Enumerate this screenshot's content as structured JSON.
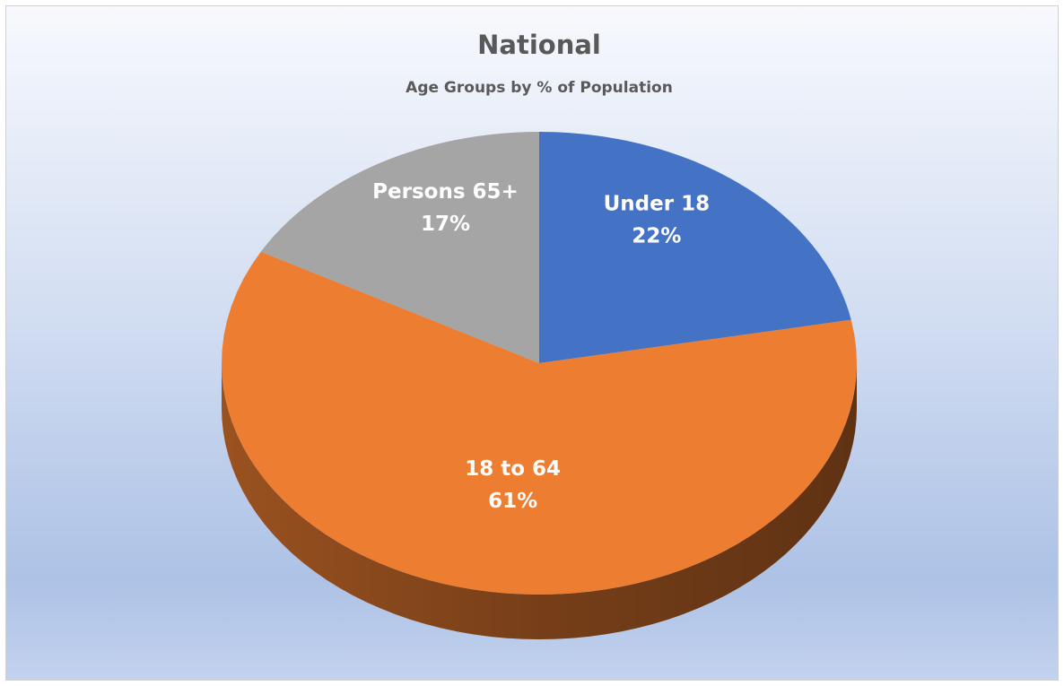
{
  "chart_data": {
    "type": "pie",
    "title": "National",
    "subtitle": "Age Groups by % of Population",
    "categories": [
      "Under 18",
      "18 to 64",
      "Persons 65+"
    ],
    "values": [
      22,
      61,
      17
    ],
    "value_labels": [
      "22%",
      "61%",
      "17%"
    ],
    "colors": [
      "#4472c4",
      "#ed7d31",
      "#a5a5a5"
    ]
  }
}
